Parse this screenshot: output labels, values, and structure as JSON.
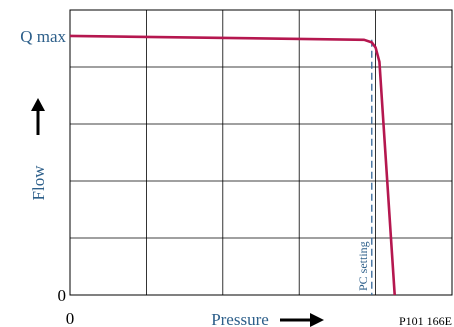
{
  "chart_data": {
    "type": "line",
    "ylabel": "Flow",
    "xlabel": "Pressure",
    "y_ticks": [
      {
        "label": "Q max",
        "value": 1.0
      },
      {
        "label": "0",
        "value": 0
      }
    ],
    "x_ticks": [
      {
        "label": "0",
        "value": 0
      }
    ],
    "xlim": [
      0,
      100
    ],
    "ylim": [
      0,
      1.1
    ],
    "grid": true,
    "grid_x_step": 20,
    "grid_y_step": 0.22,
    "series": [
      {
        "color": "#b5174f",
        "points": [
          [
            0,
            1.0
          ],
          [
            77,
            0.985
          ],
          [
            79,
            0.975
          ],
          [
            80,
            0.955
          ],
          [
            81,
            0.9
          ],
          [
            85,
            0
          ]
        ]
      }
    ],
    "annotations": [
      {
        "text": "PC setting",
        "x": 79,
        "style": "dashed-vertical",
        "color": "#336699"
      }
    ],
    "figure_code": "P101 166E"
  }
}
